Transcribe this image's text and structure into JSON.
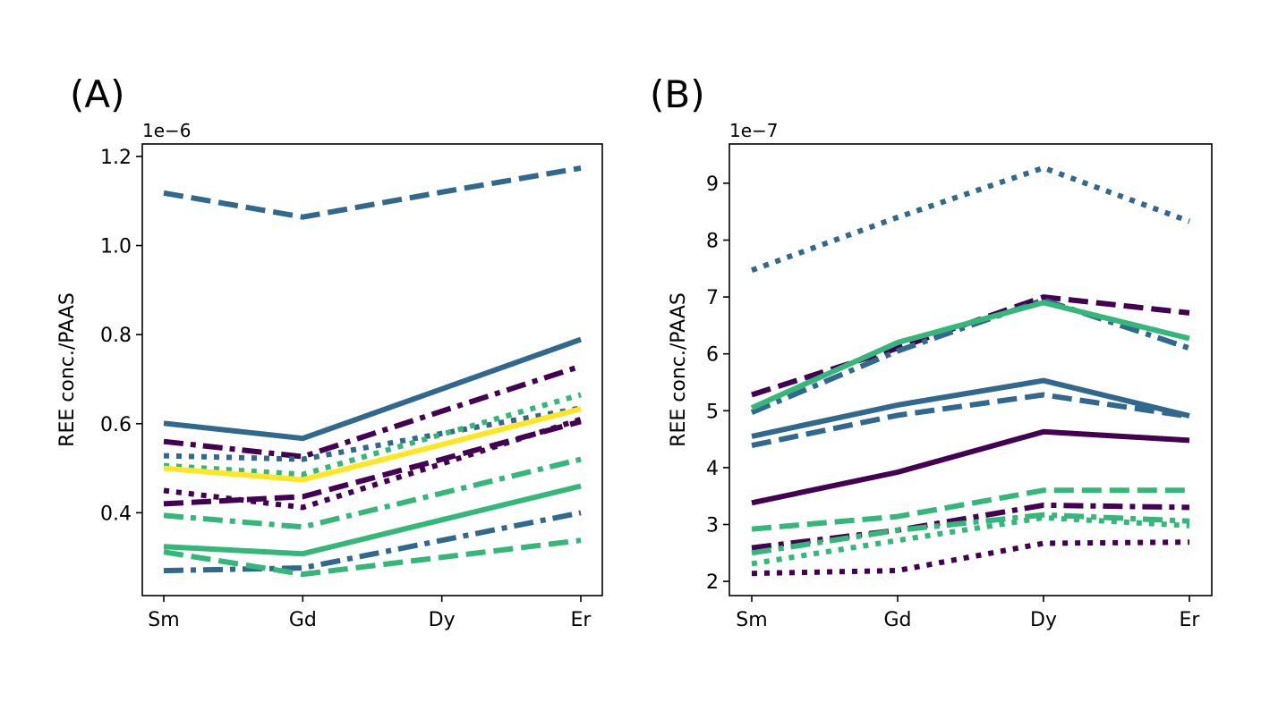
{
  "colors": {
    "purple": "#440154",
    "blue": "#31688e",
    "green": "#35b779",
    "yellow": "#fde725"
  },
  "chart_data": [
    {
      "type": "line",
      "panel_label": "(A)",
      "ylabel": "REE conc./PAAS",
      "offset_text": "1e−6",
      "scale": 1e-06,
      "categories": [
        "Sm",
        "Gd",
        "Dy",
        "Er"
      ],
      "yticks": [
        0.4,
        0.6,
        0.8,
        1.0,
        1.2
      ],
      "ytick_labels": [
        "0.4",
        "0.6",
        "0.8",
        "1.0",
        "1.2"
      ],
      "ylim": [
        0.214,
        1.228
      ],
      "grid": false,
      "series": [
        {
          "color": "blue",
          "style": "dashed",
          "values": [
            1.118,
            1.064,
            1.12,
            1.174
          ]
        },
        {
          "color": "blue",
          "style": "solid",
          "values": [
            0.601,
            0.567,
            0.678,
            0.789
          ]
        },
        {
          "color": "purple",
          "style": "dashdot",
          "values": [
            0.56,
            0.526,
            0.628,
            0.729
          ]
        },
        {
          "color": "blue",
          "style": "dotted",
          "values": [
            0.528,
            0.52,
            0.578,
            0.635
          ]
        },
        {
          "color": "green",
          "style": "dotted",
          "values": [
            0.506,
            0.486,
            0.576,
            0.665
          ]
        },
        {
          "color": "yellow",
          "style": "solid",
          "values": [
            0.5,
            0.474,
            0.553,
            0.633
          ]
        },
        {
          "color": "purple",
          "style": "dotted",
          "values": [
            0.45,
            0.412,
            0.51,
            0.61
          ]
        },
        {
          "color": "purple",
          "style": "dashed",
          "values": [
            0.42,
            0.436,
            0.52,
            0.605
          ]
        },
        {
          "color": "green",
          "style": "dashdot",
          "values": [
            0.394,
            0.368,
            0.444,
            0.52
          ]
        },
        {
          "color": "green",
          "style": "solid",
          "values": [
            0.324,
            0.308,
            0.384,
            0.46
          ]
        },
        {
          "color": "blue",
          "style": "dashdot",
          "values": [
            0.27,
            0.276,
            0.338,
            0.4
          ]
        },
        {
          "color": "green",
          "style": "dashed",
          "values": [
            0.312,
            0.262,
            0.3,
            0.338
          ]
        }
      ]
    },
    {
      "type": "line",
      "panel_label": "(B)",
      "ylabel": "REE conc./PAAS",
      "offset_text": "1e−7",
      "scale": 1e-07,
      "categories": [
        "Sm",
        "Gd",
        "Dy",
        "Er"
      ],
      "yticks": [
        2,
        3,
        4,
        5,
        6,
        7,
        8,
        9
      ],
      "ytick_labels": [
        "2",
        "3",
        "4",
        "5",
        "6",
        "7",
        "8",
        "9"
      ],
      "ylim": [
        1.75,
        9.69
      ],
      "grid": false,
      "series": [
        {
          "color": "blue",
          "style": "dotted",
          "values": [
            7.47,
            8.4,
            9.27,
            8.33
          ]
        },
        {
          "color": "purple",
          "style": "dashed",
          "values": [
            5.28,
            6.1,
            7.0,
            6.72
          ]
        },
        {
          "color": "blue",
          "style": "dashdot",
          "values": [
            4.97,
            6.05,
            6.95,
            6.1
          ]
        },
        {
          "color": "green",
          "style": "solid",
          "values": [
            5.05,
            6.2,
            6.9,
            6.27
          ]
        },
        {
          "color": "blue",
          "style": "solid",
          "values": [
            4.55,
            5.1,
            5.53,
            4.91
          ]
        },
        {
          "color": "blue",
          "style": "dashed",
          "values": [
            4.39,
            4.92,
            5.28,
            4.9
          ]
        },
        {
          "color": "purple",
          "style": "solid",
          "values": [
            3.38,
            3.92,
            4.63,
            4.48
          ]
        },
        {
          "color": "green",
          "style": "dashed",
          "values": [
            2.92,
            3.14,
            3.6,
            3.6
          ]
        },
        {
          "color": "purple",
          "style": "dashdot",
          "values": [
            2.59,
            2.9,
            3.34,
            3.3
          ]
        },
        {
          "color": "green",
          "style": "dashdot",
          "values": [
            2.5,
            2.9,
            3.17,
            3.06
          ]
        },
        {
          "color": "green",
          "style": "dotted",
          "values": [
            2.31,
            2.72,
            3.12,
            2.98
          ]
        },
        {
          "color": "purple",
          "style": "dotted",
          "values": [
            2.14,
            2.19,
            2.67,
            2.69
          ]
        }
      ]
    }
  ]
}
